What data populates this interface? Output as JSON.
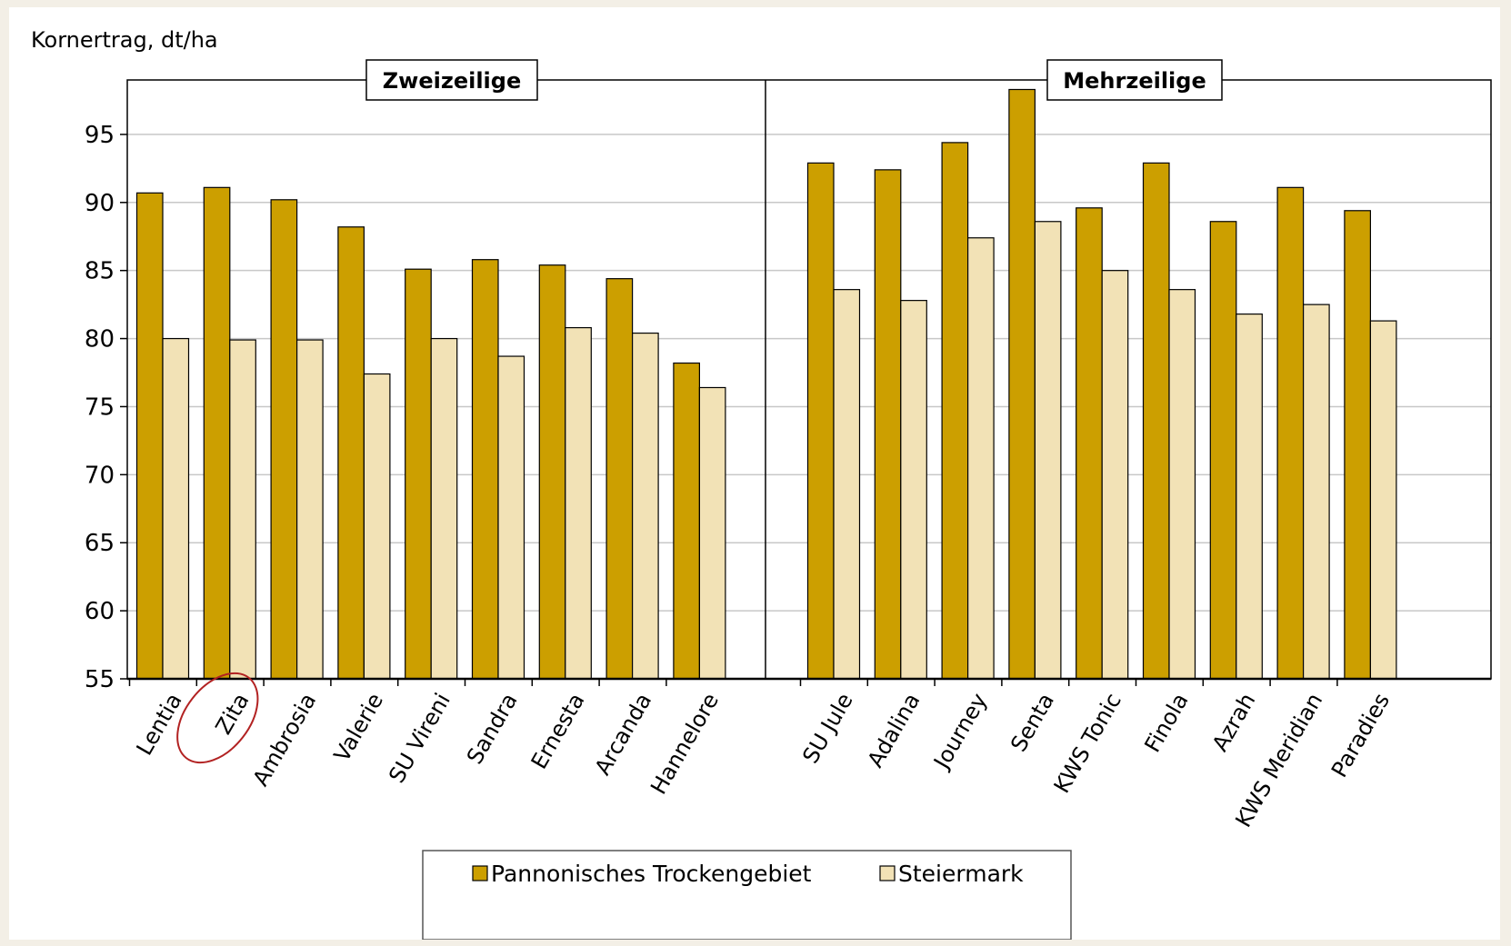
{
  "chart_data": {
    "type": "bar",
    "ylabel": "Kornertrag,  dt/ha",
    "ylim": [
      55,
      99
    ],
    "yticks": [
      55,
      60,
      65,
      70,
      75,
      80,
      85,
      90,
      95
    ],
    "groups": [
      {
        "title": "Zweizeilige",
        "categories": [
          "Lentia",
          "Zita",
          "Ambrosia",
          "Valerie",
          "SU Vireni",
          "Sandra",
          "Ernesta",
          "Arcanda",
          "Hannelore"
        ],
        "series": [
          {
            "name": "Pannonisches Trockengebiet",
            "values": [
              90.7,
              91.1,
              90.2,
              88.2,
              85.1,
              85.8,
              85.4,
              84.4,
              78.2
            ]
          },
          {
            "name": "Steiermark",
            "values": [
              80.0,
              79.9,
              79.9,
              77.4,
              80.0,
              78.7,
              80.8,
              80.4,
              76.4
            ]
          }
        ]
      },
      {
        "title": "Mehrzeilige",
        "categories": [
          "SU Jule",
          "Adalina",
          "Journey",
          "Senta",
          "KWS Tonic",
          "Finola",
          "Azrah",
          "KWS Meridian",
          "Paradies"
        ],
        "series": [
          {
            "name": "Pannonisches Trockengebiet",
            "values": [
              92.9,
              92.4,
              94.4,
              98.3,
              89.6,
              92.9,
              88.6,
              91.1,
              89.4
            ]
          },
          {
            "name": "Steiermark",
            "values": [
              83.6,
              82.8,
              87.4,
              88.6,
              85.0,
              83.6,
              81.8,
              82.5,
              81.3
            ]
          }
        ]
      }
    ],
    "legend": [
      "Pannonisches Trockengebiet",
      "Steiermark"
    ],
    "legend_position": "bottom",
    "grid": true,
    "highlight": "Zita",
    "colors": {
      "series1": "#cc9f00",
      "series2": "#f2e2b6",
      "gridline": "#c8c8c8",
      "highlight_ring": "#b22222"
    }
  }
}
